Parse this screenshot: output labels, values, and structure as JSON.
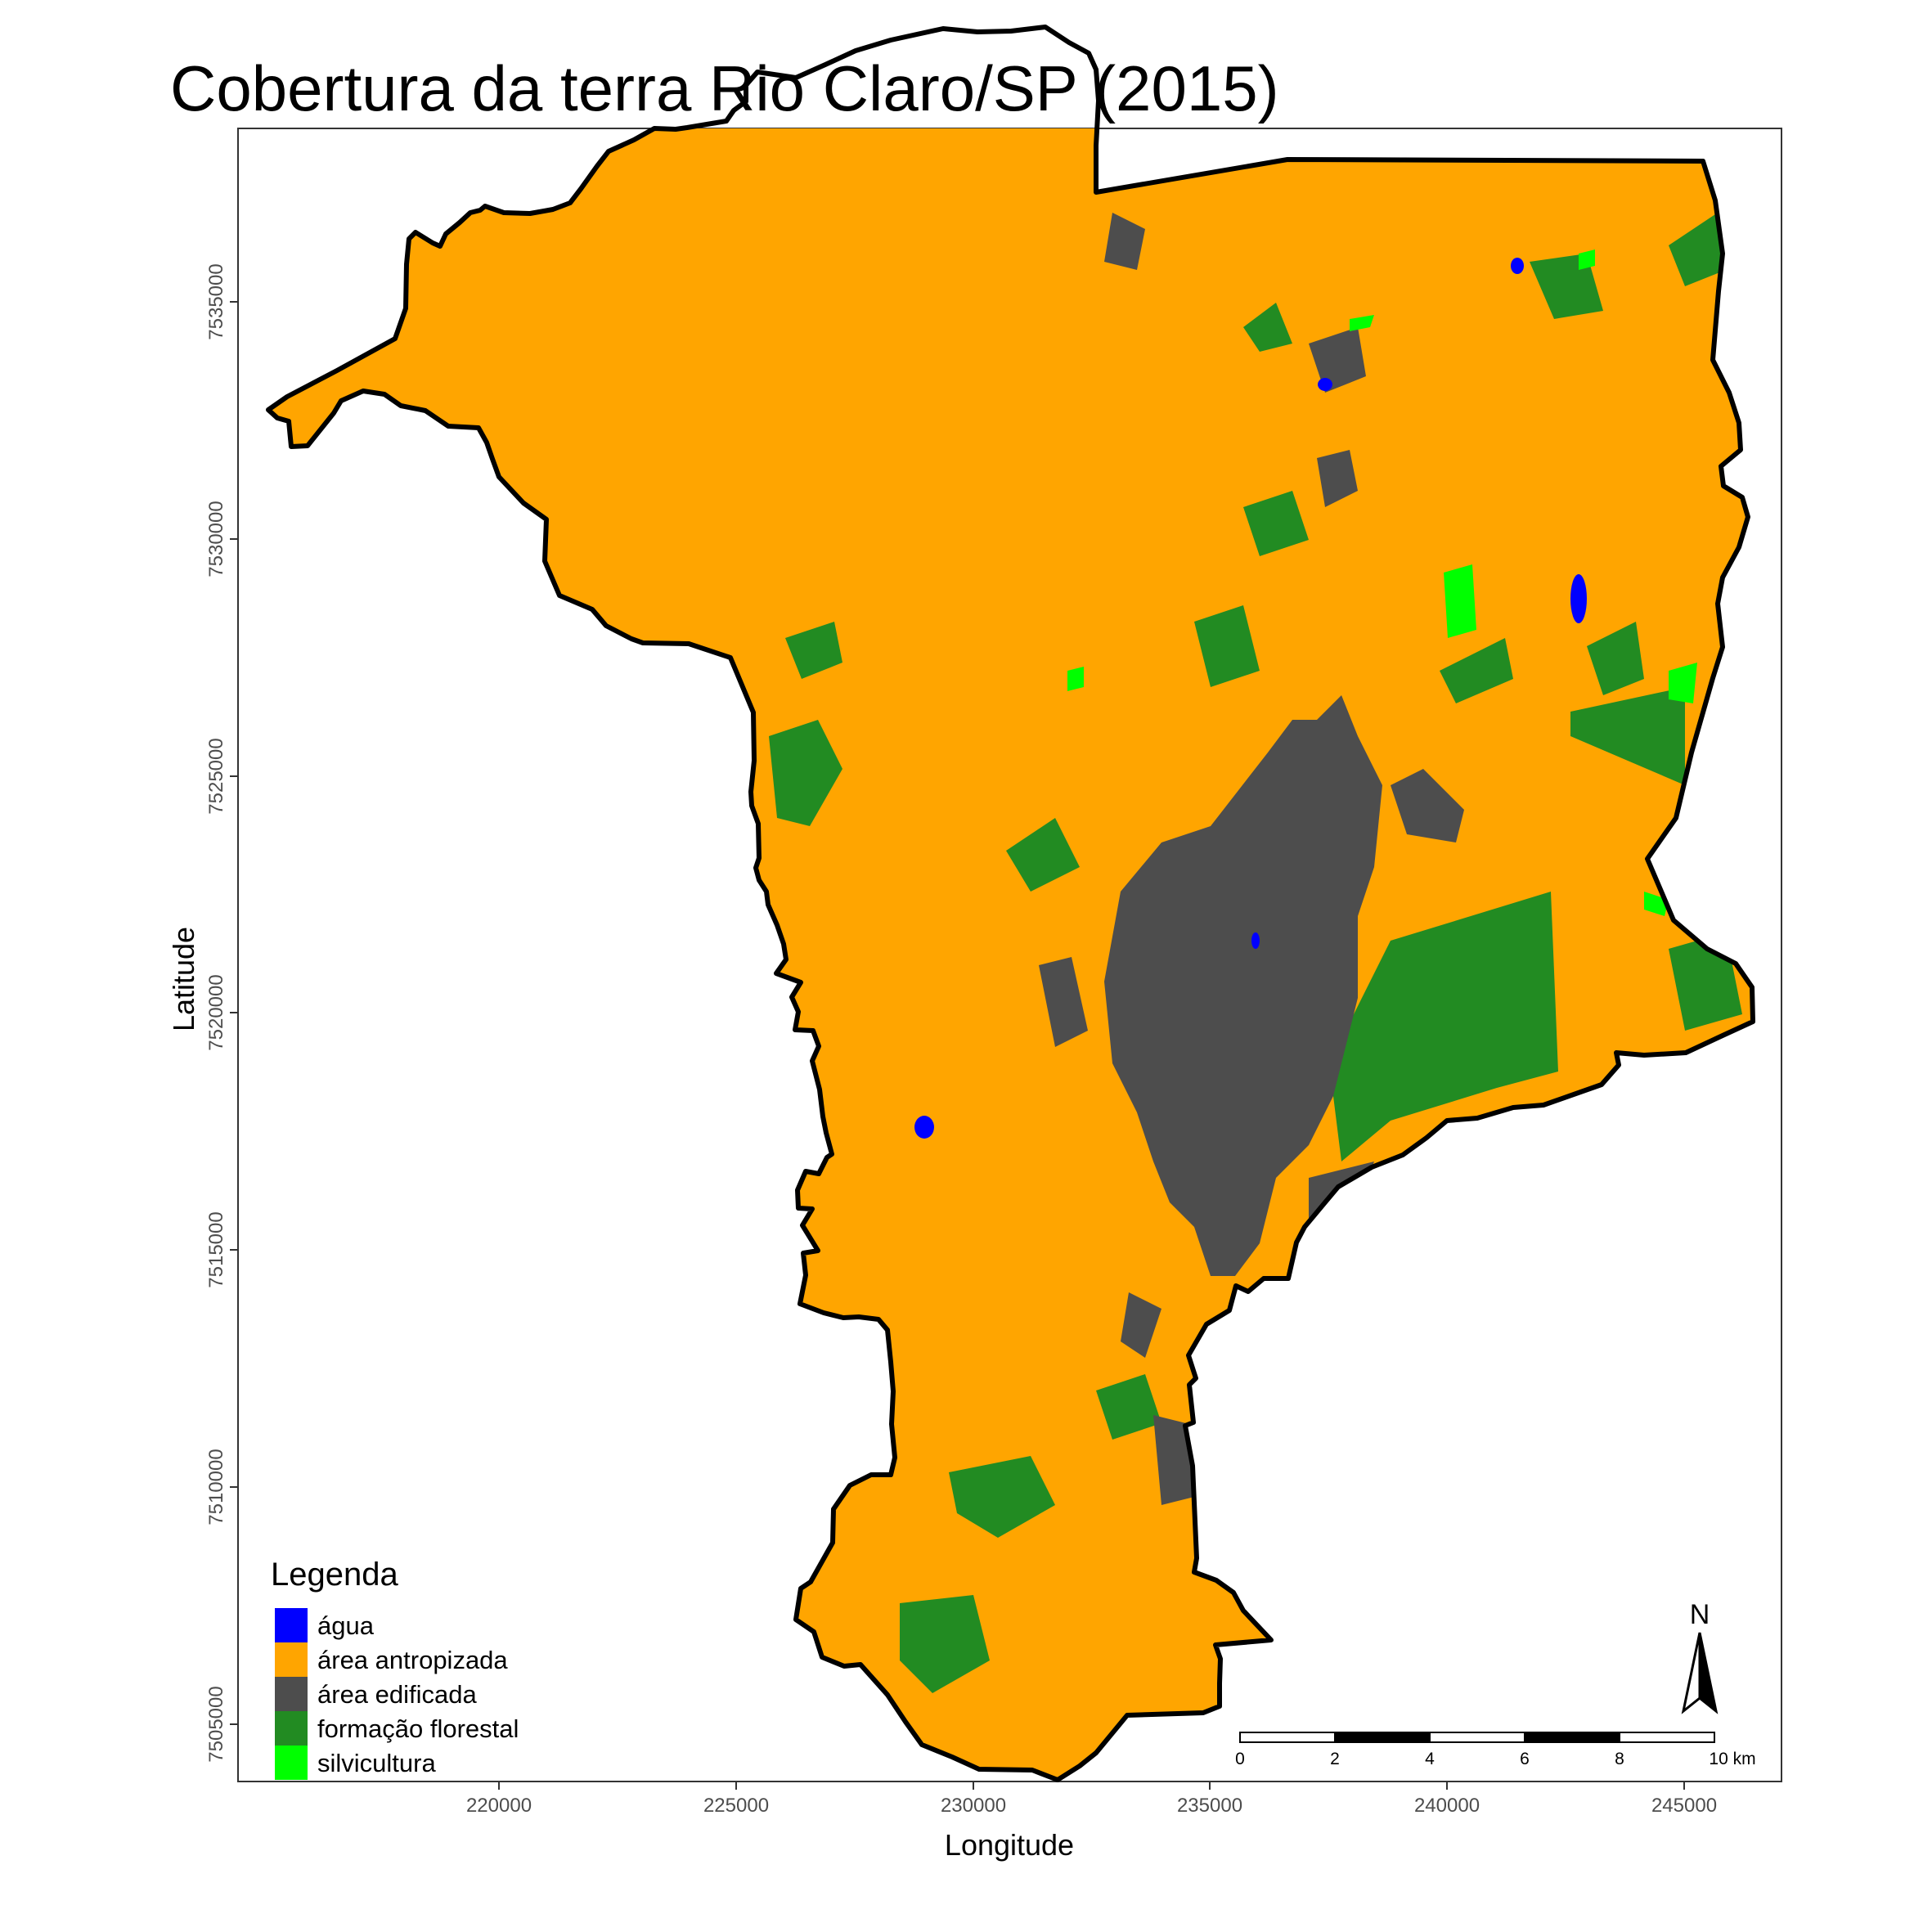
{
  "title": "Cobertura da terra Rio Claro/SP (2015)",
  "axes": {
    "x_label": "Longitude",
    "y_label": "Latitude",
    "x_ticks": [
      "220000",
      "225000",
      "230000",
      "235000",
      "240000",
      "245000"
    ],
    "y_ticks": [
      "7535000",
      "7530000",
      "7525000",
      "7520000",
      "7515000",
      "7510000",
      "7505000"
    ]
  },
  "legend": {
    "title": "Legenda",
    "items": [
      {
        "label": "água",
        "color": "#0000ff"
      },
      {
        "label": "área antropizada",
        "color": "#ffa500"
      },
      {
        "label": "área edificada",
        "color": "#4d4d4d"
      },
      {
        "label": "formação florestal",
        "color": "#228b22"
      },
      {
        "label": "silvicultura",
        "color": "#00ff00"
      }
    ]
  },
  "scale_bar": {
    "labels": [
      "0",
      "2",
      "4",
      "6",
      "8",
      "10 km"
    ]
  },
  "north_arrow": {
    "label": "N"
  },
  "colors": {
    "agua": "#0000ff",
    "antropizada": "#ffa500",
    "edificada": "#4d4d4d",
    "florestal": "#228b22",
    "silvicultura": "#00ff00",
    "boundary": "#000000"
  }
}
